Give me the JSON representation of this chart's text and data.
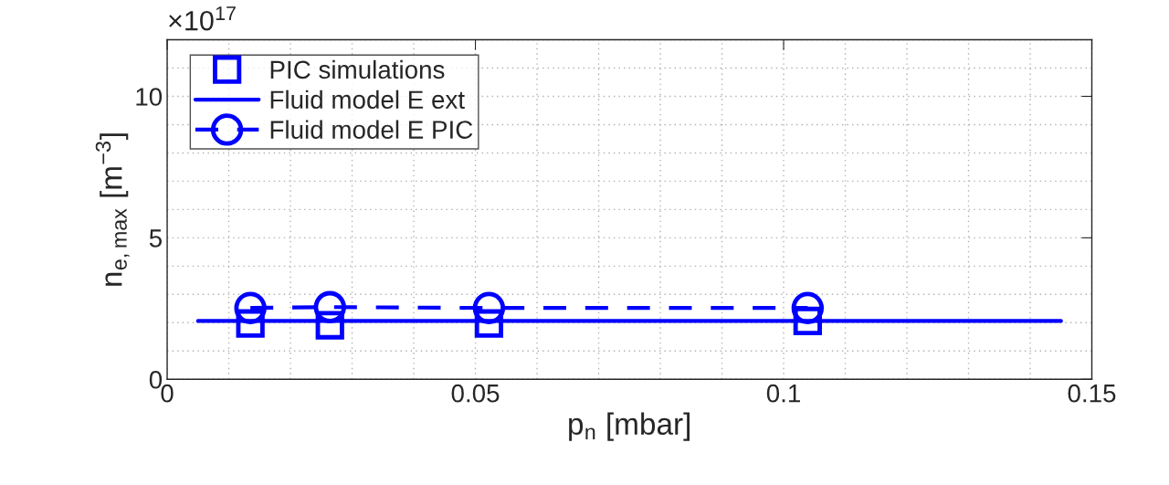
{
  "chart_data": {
    "type": "line",
    "xlabel": "p$_{n}$ [mbar]",
    "ylabel": "n$_{e,max}$ [m$^{−3}$]",
    "annotations": [
      "×10$^{17}$"
    ],
    "series": [
      {
        "name": "PIC simulations",
        "type": "scatter",
        "marker": "square",
        "color": "#0000ff",
        "x": [
          0.0135,
          0.0264,
          0.0522,
          0.1039
        ],
        "values": [
          1.97,
          1.91,
          1.97,
          2.06
        ]
      },
      {
        "name": "Fluid model E ext",
        "marker": "none",
        "line_style": "solid",
        "color": "#0000ff",
        "x": [
          0.005,
          0.145
        ],
        "values": [
          2.06,
          2.06
        ]
      },
      {
        "name": "Fluid model E PIC",
        "marker": "circle",
        "line_style": "dashed",
        "color": "#0000ff",
        "x": [
          0.0135,
          0.0264,
          0.0522,
          0.1039
        ],
        "values": [
          2.52,
          2.55,
          2.52,
          2.52
        ]
      }
    ],
    "xlim": [
      0,
      0.15
    ],
    "xticks": [
      0,
      0.05,
      0.1,
      0.15
    ],
    "ylim": [
      0,
      12
    ],
    "yticks": [
      0,
      5,
      10
    ],
    "grid": true,
    "legend": "top left"
  }
}
